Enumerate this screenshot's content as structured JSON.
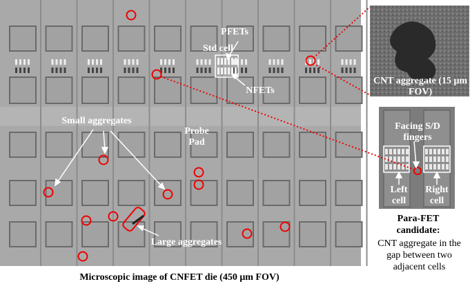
{
  "figure": {
    "main_image": {
      "labels": {
        "pfets": "PFETs",
        "std_cell": "Std cell",
        "nfets": "NFETs",
        "small_aggregates": "Small aggregates",
        "probe_pad": "Probe Pad",
        "large_aggregates": "Large aggregates"
      },
      "caption": "Microscopic image of CNFET die (450 μm FOV)"
    },
    "zoom_inset": {
      "label": "CNT aggregate (15 μm FOV)"
    },
    "cell_inset": {
      "facing": "Facing S/D fingers",
      "left_cell": "Left cell",
      "right_cell": "Right cell"
    },
    "para_fet": {
      "title": "Para-FET candidate:",
      "description": "CNT aggregate in the gap between two adjacent cells"
    }
  }
}
